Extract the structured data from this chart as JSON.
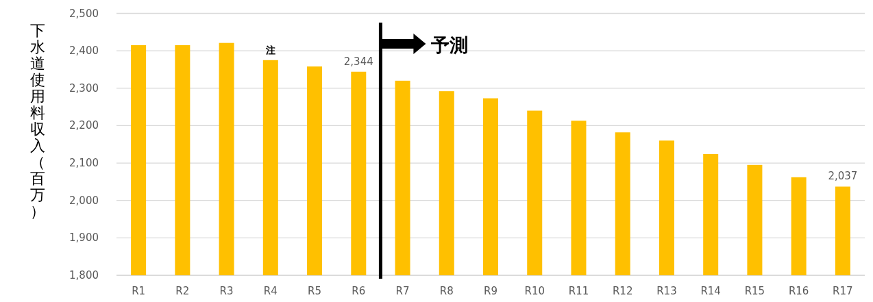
{
  "chart_data": {
    "type": "bar",
    "ylabel": "下水道使用料収入（百万）",
    "categories": [
      "R1",
      "R2",
      "R3",
      "R4",
      "R5",
      "R6",
      "R7",
      "R8",
      "R9",
      "R10",
      "R11",
      "R12",
      "R13",
      "R14",
      "R15",
      "R16",
      "R17"
    ],
    "values": [
      2415,
      2415,
      2421,
      2375,
      2358,
      2344,
      2320,
      2292,
      2273,
      2240,
      2213,
      2182,
      2160,
      2124,
      2095,
      2062,
      2037
    ],
    "value_labels": [
      null,
      null,
      null,
      null,
      null,
      "2,344",
      null,
      null,
      null,
      null,
      null,
      null,
      null,
      null,
      null,
      null,
      "2,037"
    ],
    "color": "#ffc000",
    "ylim": [
      1800,
      2500
    ],
    "yticks": [
      {
        "value": 1800,
        "label": "1,800"
      },
      {
        "value": 1900,
        "label": "1,900"
      },
      {
        "value": 2000,
        "label": "2,000"
      },
      {
        "value": 2100,
        "label": "2,100"
      },
      {
        "value": 2200,
        "label": "2,200"
      },
      {
        "value": 2300,
        "label": "2,300"
      },
      {
        "value": 2400,
        "label": "2,400"
      },
      {
        "value": 2500,
        "label": "2,500"
      }
    ],
    "grid": "y",
    "annotations": [
      "注",
      "予測"
    ]
  }
}
